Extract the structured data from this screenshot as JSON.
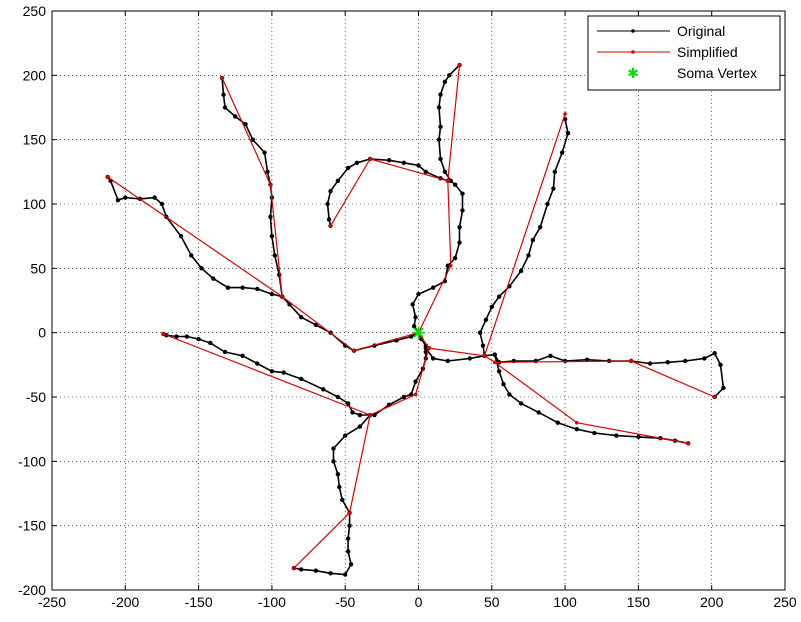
{
  "chart_data": {
    "type": "line",
    "title": "",
    "xlabel": "",
    "ylabel": "",
    "xlim": [
      -250,
      250
    ],
    "ylim": [
      -200,
      250
    ],
    "xticks": [
      -250,
      -200,
      -150,
      -100,
      -50,
      0,
      50,
      100,
      150,
      200,
      250
    ],
    "yticks": [
      -200,
      -150,
      -100,
      -50,
      0,
      50,
      100,
      150,
      200,
      250
    ],
    "xtick_labels": [
      "-250",
      "-200",
      "-150",
      "-100",
      "-50",
      "0",
      "50",
      "100",
      "150",
      "200",
      "250"
    ],
    "ytick_labels": [
      "-200",
      "-150",
      "-100",
      "-50",
      "0",
      "50",
      "100",
      "150",
      "200",
      "250"
    ],
    "grid": true,
    "legend_position": "top-right",
    "colors": {
      "original": "#000000",
      "simplified": "#e00000",
      "soma": "#00e000"
    },
    "series": [
      {
        "name": "Original",
        "style": "line-dot",
        "branches": [
          [
            [
              0,
              0
            ],
            [
              -5,
              -3
            ],
            [
              -15,
              -6
            ],
            [
              -30,
              -10
            ],
            [
              -44,
              -14
            ],
            [
              -50,
              -10
            ],
            [
              -60,
              0
            ],
            [
              -70,
              6
            ],
            [
              -80,
              12
            ],
            [
              -88,
              22
            ],
            [
              -93,
              28
            ],
            [
              -100,
              30
            ],
            [
              -110,
              34
            ],
            [
              -120,
              35
            ],
            [
              -130,
              35
            ],
            [
              -140,
              42
            ],
            [
              -148,
              50
            ],
            [
              -155,
              60
            ],
            [
              -162,
              75
            ],
            [
              -172,
              90
            ],
            [
              -175,
              100
            ],
            [
              -180,
              105
            ],
            [
              -190,
              104
            ],
            [
              -200,
              105
            ],
            [
              -205,
              103
            ],
            [
              -210,
              118
            ],
            [
              -212,
              121
            ]
          ],
          [
            [
              -93,
              28
            ],
            [
              -95,
              45
            ],
            [
              -98,
              60
            ],
            [
              -100,
              75
            ],
            [
              -101,
              90
            ],
            [
              -100,
              105
            ],
            [
              -101,
              115
            ],
            [
              -103,
              125
            ],
            [
              -105,
              140
            ],
            [
              -113,
              150
            ],
            [
              -118,
              162
            ],
            [
              -125,
              168
            ],
            [
              -132,
              175
            ],
            [
              -133,
              185
            ],
            [
              -134,
              198
            ]
          ],
          [
            [
              0,
              0
            ],
            [
              2,
              -5
            ],
            [
              5,
              -10
            ],
            [
              7,
              -12
            ],
            [
              5,
              -15
            ],
            [
              5,
              -20
            ],
            [
              3,
              -28
            ],
            [
              -2,
              -38
            ],
            [
              -5,
              -48
            ],
            [
              -10,
              -50
            ],
            [
              -20,
              -56
            ],
            [
              -30,
              -64
            ],
            [
              -40,
              -64
            ],
            [
              -45,
              -62
            ],
            [
              -48,
              -55
            ],
            [
              -55,
              -50
            ],
            [
              -65,
              -44
            ],
            [
              -80,
              -36
            ],
            [
              -92,
              -31
            ],
            [
              -100,
              -30
            ],
            [
              -110,
              -24
            ],
            [
              -120,
              -18
            ],
            [
              -132,
              -15
            ],
            [
              -142,
              -8
            ],
            [
              -150,
              -5
            ],
            [
              -158,
              -3
            ],
            [
              -165,
              -3
            ],
            [
              -172,
              -2
            ],
            [
              -174,
              -1
            ]
          ],
          [
            [
              -33,
              -64
            ],
            [
              -40,
              -73
            ],
            [
              -50,
              -80
            ],
            [
              -58,
              -90
            ],
            [
              -58,
              -100
            ],
            [
              -55,
              -110
            ],
            [
              -54,
              -120
            ],
            [
              -52,
              -130
            ],
            [
              -47,
              -140
            ],
            [
              -47,
              -150
            ],
            [
              -48,
              -160
            ],
            [
              -48,
              -170
            ],
            [
              -46,
              -180
            ],
            [
              -50,
              -188
            ],
            [
              -60,
              -187
            ],
            [
              -70,
              -185
            ],
            [
              -80,
              -184
            ],
            [
              -85,
              -183
            ]
          ],
          [
            [
              0,
              0
            ],
            [
              -3,
              5
            ],
            [
              -2,
              12
            ],
            [
              -4,
              22
            ],
            [
              0,
              30
            ],
            [
              10,
              35
            ],
            [
              18,
              40
            ],
            [
              20,
              52
            ],
            [
              25,
              58
            ],
            [
              28,
              70
            ],
            [
              28,
              82
            ],
            [
              30,
              95
            ],
            [
              30,
              108
            ],
            [
              25,
              115
            ],
            [
              22,
              118
            ],
            [
              18,
              125
            ],
            [
              15,
              135
            ],
            [
              14,
              150
            ],
            [
              15,
              160
            ],
            [
              14,
              175
            ],
            [
              15,
              185
            ],
            [
              18,
              195
            ],
            [
              21,
              200
            ],
            [
              28,
              208
            ]
          ],
          [
            [
              20,
              118
            ],
            [
              15,
              120
            ],
            [
              5,
              125
            ],
            [
              0,
              130
            ],
            [
              -10,
              132
            ],
            [
              -20,
              134
            ],
            [
              -33,
              135
            ],
            [
              -42,
              132
            ],
            [
              -48,
              128
            ],
            [
              -55,
              118
            ],
            [
              -60,
              110
            ],
            [
              -62,
              100
            ],
            [
              -61,
              88
            ],
            [
              -60,
              83
            ]
          ],
          [
            [
              5,
              -12
            ],
            [
              10,
              -20
            ],
            [
              20,
              -22
            ],
            [
              35,
              -20
            ],
            [
              45,
              -18
            ],
            [
              52,
              -17
            ],
            [
              55,
              -23
            ],
            [
              65,
              -22
            ],
            [
              80,
              -22
            ],
            [
              90,
              -18
            ],
            [
              100,
              -22
            ],
            [
              115,
              -21
            ],
            [
              130,
              -22
            ],
            [
              145,
              -22
            ],
            [
              158,
              -24
            ],
            [
              170,
              -23
            ],
            [
              182,
              -22
            ],
            [
              195,
              -20
            ],
            [
              202,
              -16
            ],
            [
              206,
              -25
            ],
            [
              208,
              -43
            ],
            [
              202,
              -50
            ]
          ],
          [
            [
              45,
              -18
            ],
            [
              44,
              -10
            ],
            [
              42,
              0
            ],
            [
              46,
              10
            ],
            [
              50,
              20
            ],
            [
              55,
              28
            ],
            [
              62,
              36
            ],
            [
              70,
              48
            ],
            [
              75,
              60
            ],
            [
              78,
              72
            ],
            [
              83,
              82
            ],
            [
              88,
              100
            ],
            [
              92,
              112
            ],
            [
              93,
              125
            ],
            [
              98,
              140
            ],
            [
              102,
              155
            ],
            [
              100,
              166
            ]
          ],
          [
            [
              52,
              -17
            ],
            [
              55,
              -30
            ],
            [
              58,
              -40
            ],
            [
              62,
              -48
            ],
            [
              70,
              -55
            ],
            [
              82,
              -62
            ],
            [
              95,
              -70
            ],
            [
              108,
              -75
            ],
            [
              120,
              -78
            ],
            [
              135,
              -80
            ],
            [
              150,
              -81
            ],
            [
              165,
              -82
            ],
            [
              175,
              -84
            ],
            [
              184,
              -86
            ]
          ]
        ]
      },
      {
        "name": "Simplified",
        "style": "line-dot",
        "branches": [
          [
            [
              0,
              0
            ],
            [
              -44,
              -14
            ],
            [
              -93,
              28
            ],
            [
              -212,
              121
            ]
          ],
          [
            [
              -93,
              28
            ],
            [
              -101,
              115
            ],
            [
              -134,
              198
            ]
          ],
          [
            [
              0,
              0
            ],
            [
              7,
              -12
            ],
            [
              -2,
              -48
            ],
            [
              -33,
              -64
            ],
            [
              -174,
              -1
            ]
          ],
          [
            [
              -33,
              -64
            ],
            [
              -47,
              -140
            ],
            [
              -85,
              -183
            ]
          ],
          [
            [
              0,
              0
            ],
            [
              22,
              52
            ],
            [
              20,
              118
            ],
            [
              28,
              208
            ]
          ],
          [
            [
              20,
              118
            ],
            [
              -33,
              135
            ],
            [
              -60,
              83
            ]
          ],
          [
            [
              7,
              -12
            ],
            [
              45,
              -18
            ],
            [
              52,
              -23
            ],
            [
              145,
              -22
            ],
            [
              202,
              -50
            ]
          ],
          [
            [
              45,
              -18
            ],
            [
              100,
              170
            ]
          ],
          [
            [
              52,
              -23
            ],
            [
              108,
              -70
            ],
            [
              184,
              -86
            ]
          ]
        ]
      },
      {
        "name": "Soma Vertex",
        "style": "star",
        "points": [
          [
            0,
            0
          ]
        ]
      }
    ]
  }
}
